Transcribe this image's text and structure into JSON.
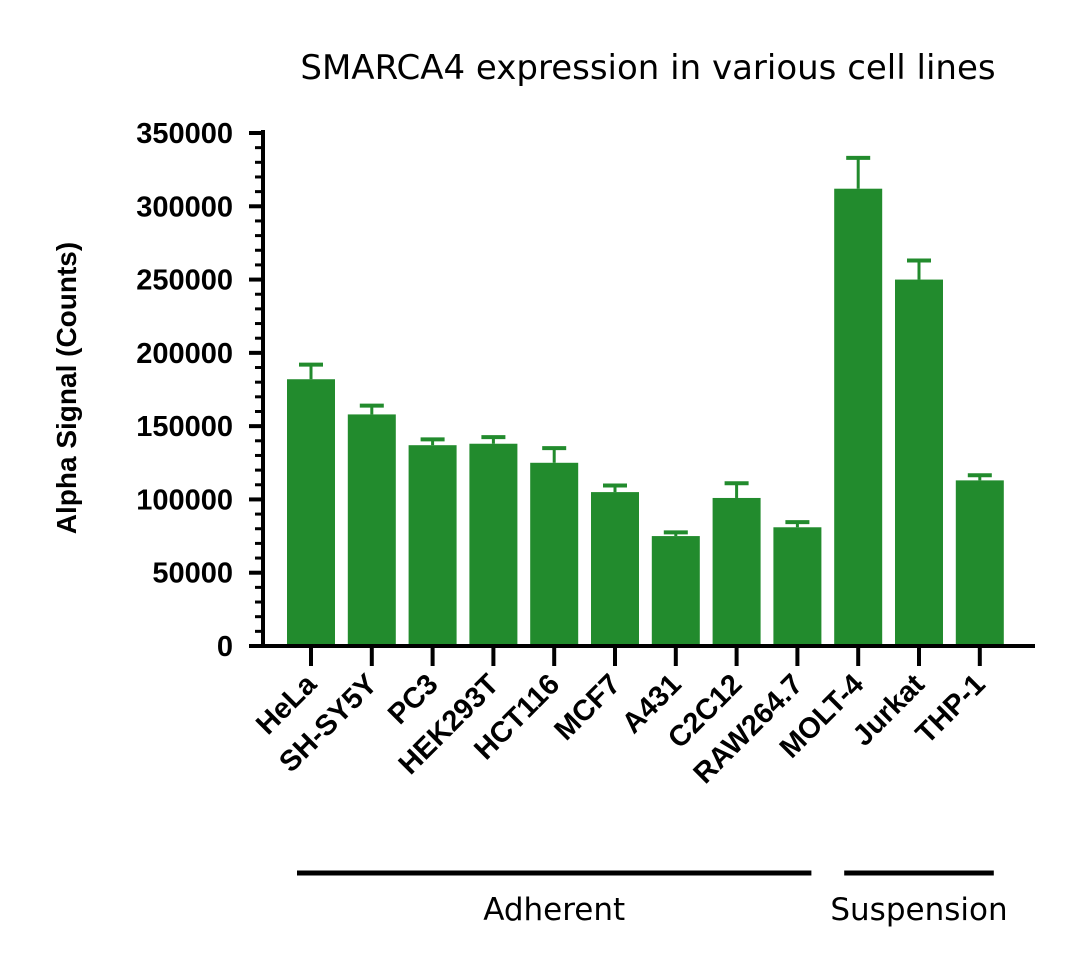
{
  "chart_data": {
    "type": "bar",
    "title": "SMARCA4 expression in various cell lines",
    "xlabel": "",
    "ylabel": "Alpha Signal (Counts)",
    "ylim": [
      0,
      350000
    ],
    "y_ticks": [
      0,
      50000,
      100000,
      150000,
      200000,
      250000,
      300000,
      350000
    ],
    "y_tick_labels": [
      "0",
      "50000",
      "100000",
      "150000",
      "200000",
      "250000",
      "300000",
      "350000"
    ],
    "categories": [
      "HeLa",
      "SH-SY5Y",
      "PC3",
      "HEK293T",
      "HCT116",
      "MCF7",
      "A431",
      "C2C12",
      "RAW264.7",
      "MOLT-4",
      "Jurkat",
      "THP-1"
    ],
    "values": [
      182000,
      158000,
      137000,
      138000,
      125000,
      105000,
      75000,
      101000,
      81000,
      312000,
      250000,
      113000
    ],
    "error_upper": [
      10000,
      6000,
      4000,
      4500,
      10000,
      4500,
      2500,
      10000,
      3500,
      21000,
      13000,
      3500
    ],
    "bar_color": "#228B2D",
    "grid": false,
    "groups": [
      {
        "label": "Adherent",
        "start_index": 0,
        "end_index": 8
      },
      {
        "label": "Suspension",
        "start_index": 9,
        "end_index": 11
      }
    ]
  }
}
